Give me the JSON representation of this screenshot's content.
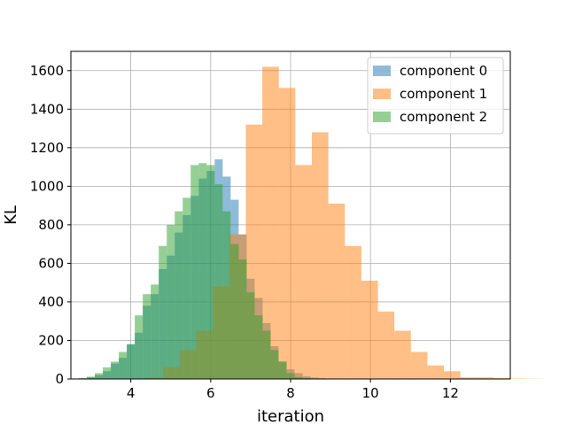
{
  "chart_data": {
    "type": "histogram",
    "xlabel": "iteration",
    "ylabel": "KL",
    "xlim": [
      2.5,
      13.5
    ],
    "ylim": [
      0,
      1700
    ],
    "x_ticks": [
      4,
      6,
      8,
      10,
      12
    ],
    "y_ticks": [
      0,
      200,
      400,
      600,
      800,
      1000,
      1200,
      1400,
      1600
    ],
    "grid": true,
    "legend_position": "top-right",
    "series": [
      {
        "name": "component 0",
        "color": "#1f77b4",
        "alpha": 0.5,
        "bin_start": 2.9,
        "bin_width": 0.2,
        "counts": [
          8,
          20,
          40,
          80,
          110,
          180,
          240,
          380,
          440,
          570,
          640,
          760,
          850,
          950,
          1040,
          1080,
          1140,
          1050,
          930,
          750,
          520,
          420,
          290,
          170,
          90,
          50,
          30,
          15,
          8,
          4
        ]
      },
      {
        "name": "component 1",
        "color": "#ff7f0e",
        "alpha": 0.5,
        "bin_start": 4.4,
        "bin_width": 0.4132,
        "counts": [
          8,
          60,
          150,
          250,
          480,
          750,
          1320,
          1620,
          1510,
          1110,
          1280,
          910,
          690,
          510,
          350,
          250,
          140,
          70,
          40,
          8,
          8,
          4,
          2,
          1
        ]
      },
      {
        "name": "component 2",
        "color": "#2ca02c",
        "alpha": 0.5,
        "bin_start": 2.7,
        "bin_width": 0.2,
        "counts": [
          5,
          12,
          30,
          60,
          90,
          140,
          180,
          330,
          440,
          490,
          690,
          800,
          870,
          940,
          1110,
          1120,
          1110,
          1010,
          870,
          700,
          620,
          450,
          330,
          250,
          150,
          90,
          30,
          10,
          5,
          2
        ]
      }
    ]
  }
}
